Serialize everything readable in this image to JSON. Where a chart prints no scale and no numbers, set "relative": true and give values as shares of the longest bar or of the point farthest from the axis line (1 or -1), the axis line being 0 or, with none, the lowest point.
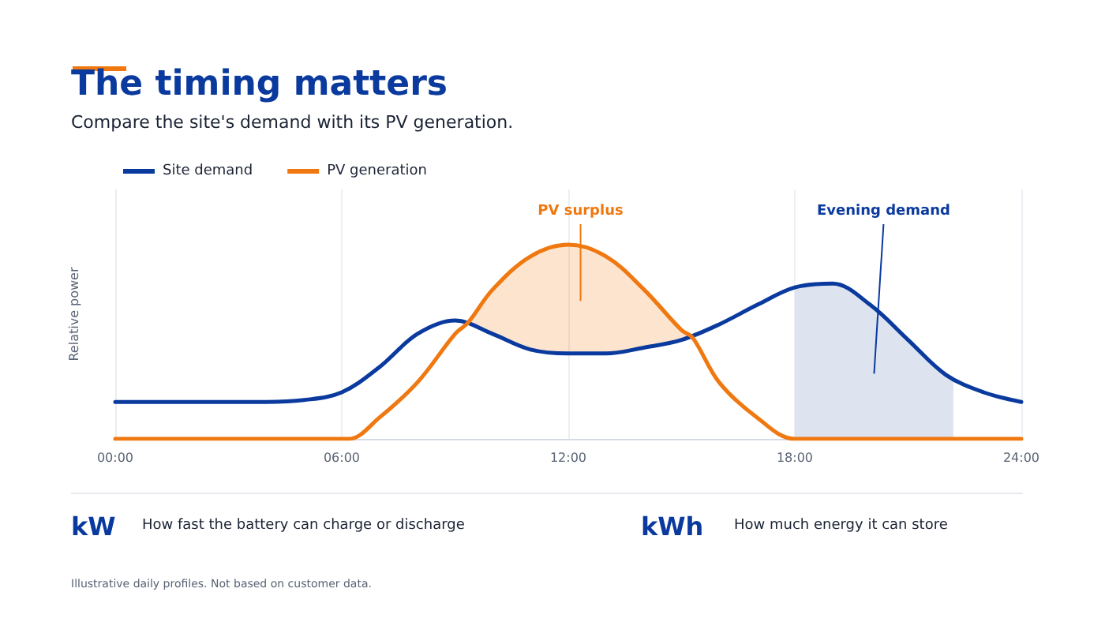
{
  "chart_data": {
    "type": "line",
    "title": "The timing matters",
    "subtitle": "Compare the site's demand with its PV generation.",
    "ylabel": "Relative power",
    "relative": true,
    "xlim": [
      0,
      24
    ],
    "xticks": [
      {
        "value": 0,
        "label": "00:00"
      },
      {
        "value": 6,
        "label": "06:00"
      },
      {
        "value": 12,
        "label": "12:00"
      },
      {
        "value": 18,
        "label": "18:00"
      },
      {
        "value": 24,
        "label": "24:00"
      }
    ],
    "series": [
      {
        "type": "area",
        "color": "#dde4f0",
        "x": [
          18,
          19,
          20,
          21,
          22,
          22.2
        ],
        "values": [
          0.78,
          0.8,
          0.69,
          0.51,
          0.33,
          0.31
        ]
      },
      {
        "name": "Site demand",
        "color": "#0a3a9e",
        "x": [
          0,
          2,
          4,
          5,
          6,
          7,
          8,
          9,
          10,
          11,
          12,
          13,
          14,
          15,
          16,
          17,
          18,
          19,
          20,
          21,
          22,
          23,
          24
        ],
        "values": [
          0.19,
          0.19,
          0.19,
          0.2,
          0.24,
          0.37,
          0.54,
          0.61,
          0.54,
          0.46,
          0.44,
          0.44,
          0.47,
          0.51,
          0.59,
          0.69,
          0.78,
          0.8,
          0.69,
          0.51,
          0.33,
          0.24,
          0.19
        ]
      },
      {
        "name": "PV generation",
        "color": "#f07810",
        "x": [
          0,
          6,
          6.2,
          7,
          8,
          9,
          9.35,
          10,
          11,
          12,
          13,
          14,
          15,
          15.3,
          16,
          17,
          18,
          24
        ],
        "values": [
          0,
          0,
          0,
          0.11,
          0.29,
          0.54,
          0.6,
          0.77,
          0.94,
          1,
          0.94,
          0.77,
          0.56,
          0.52,
          0.29,
          0.11,
          0,
          0
        ],
        "lower": [
          null,
          null,
          null,
          null,
          null,
          null,
          0.6,
          0.54,
          0.46,
          0.44,
          0.44,
          0.47,
          0.51,
          0.52,
          null,
          null,
          null,
          null
        ],
        "upper": [
          null,
          null,
          null,
          null,
          null,
          null,
          0.6,
          0.77,
          0.94,
          1,
          0.94,
          0.77,
          0.56,
          0.52,
          null,
          null,
          null,
          null
        ]
      }
    ],
    "grid": "x",
    "legend": "top left",
    "line_style": "solid",
    "marker": "none",
    "annotations": [
      "Evening demand",
      "PV surplus",
      "kW",
      "How fast the battery can charge or discharge",
      "kWh",
      "How much energy it can store",
      "Illustrative daily profiles. Not based on customer data."
    ]
  }
}
